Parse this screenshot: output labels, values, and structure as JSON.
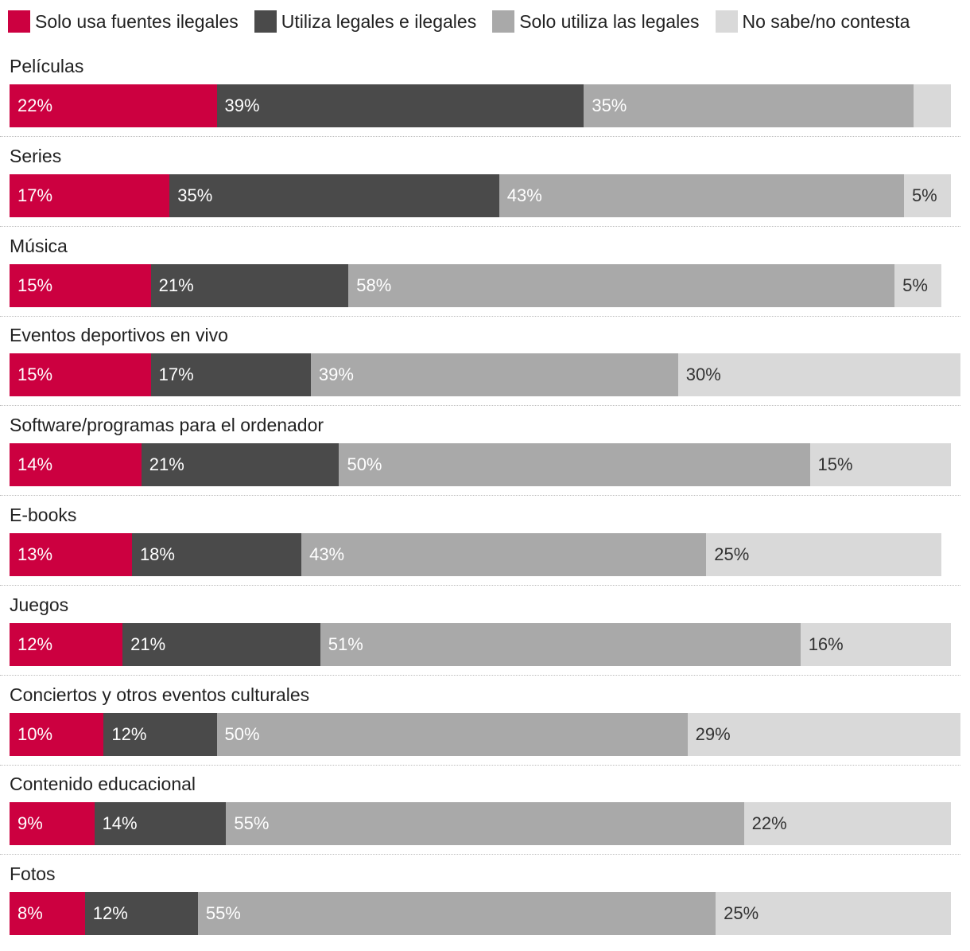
{
  "chart_data": {
    "type": "bar",
    "orientation": "horizontal",
    "stacked": true,
    "title": "",
    "xlabel": "",
    "ylabel": "",
    "xlim": [
      0,
      100
    ],
    "legend_position": "top-left",
    "categories": [
      "Películas",
      "Series",
      "Música",
      "Eventos deportivos en vivo",
      "Software/programas para el ordenador",
      "E-books",
      "Juegos",
      "Conciertos y otros eventos culturales",
      "Contenido educacional",
      "Fotos"
    ],
    "series": [
      {
        "name": "Solo usa fuentes ilegales",
        "color": "#cc0040",
        "values": [
          22,
          17,
          15,
          15,
          14,
          13,
          12,
          10,
          9,
          8
        ],
        "labels": [
          "22%",
          "17%",
          "15%",
          "15%",
          "14%",
          "13%",
          "12%",
          "10%",
          "9%",
          "8%"
        ],
        "label_color": "#ffffff"
      },
      {
        "name": "Utiliza legales e ilegales",
        "color": "#4a4a4a",
        "values": [
          39,
          35,
          21,
          17,
          21,
          18,
          21,
          12,
          14,
          12
        ],
        "labels": [
          "39%",
          "35%",
          "21%",
          "17%",
          "21%",
          "18%",
          "21%",
          "12%",
          "14%",
          "12%"
        ],
        "label_color": "#ffffff"
      },
      {
        "name": "Solo utiliza las legales",
        "color": "#a9a9a9",
        "values": [
          35,
          43,
          58,
          39,
          50,
          43,
          51,
          50,
          55,
          55
        ],
        "labels": [
          "35%",
          "43%",
          "58%",
          "39%",
          "50%",
          "43%",
          "51%",
          "50%",
          "55%",
          "55%"
        ],
        "label_color": "#ffffff"
      },
      {
        "name": "No sabe/no contesta",
        "color": "#d9d9d9",
        "values": [
          4,
          5,
          5,
          30,
          15,
          25,
          16,
          29,
          22,
          25
        ],
        "labels": [
          "",
          "5%",
          "5%",
          "30%",
          "15%",
          "25%",
          "16%",
          "29%",
          "22%",
          "25%"
        ],
        "label_color": "#333333"
      }
    ]
  }
}
